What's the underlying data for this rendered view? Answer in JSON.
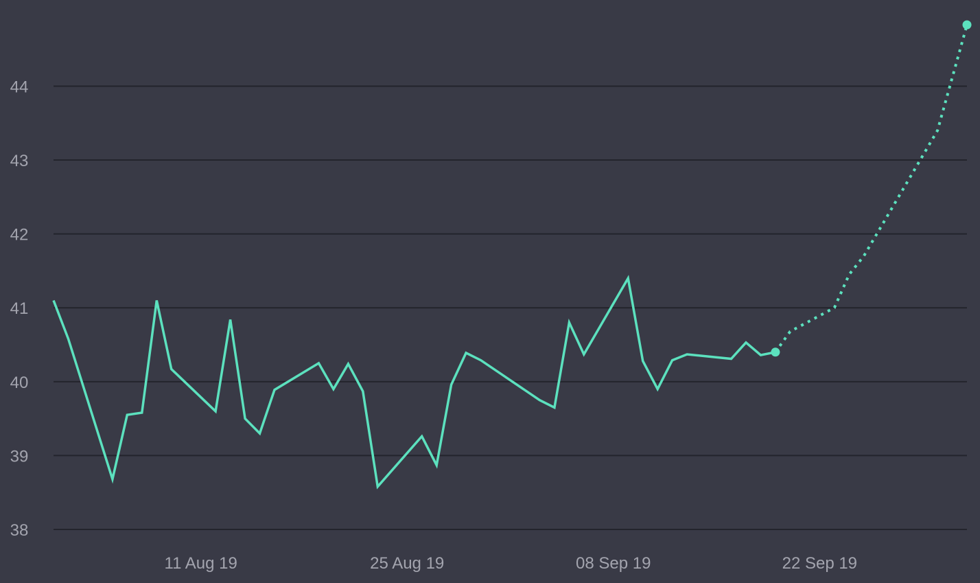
{
  "chart_data": {
    "type": "line",
    "title": "",
    "xlabel": "",
    "ylabel": "",
    "ylim": [
      38,
      44.85
    ],
    "xlim": [
      "2019-08-01",
      "2019-10-02"
    ],
    "grid": true,
    "legend": "none",
    "background_color": "#393a46",
    "series_color": "#5ce1be",
    "y_ticks": [
      {
        "value": 38,
        "label": "38"
      },
      {
        "value": 39,
        "label": "39"
      },
      {
        "value": 40,
        "label": "40"
      },
      {
        "value": 41,
        "label": "41"
      },
      {
        "value": 42,
        "label": "42"
      },
      {
        "value": 43,
        "label": "43"
      },
      {
        "value": 44,
        "label": "44"
      }
    ],
    "x_ticks": [
      {
        "value": "2019-08-11",
        "label": "11 Aug 19"
      },
      {
        "value": "2019-08-25",
        "label": "25 Aug 19"
      },
      {
        "value": "2019-09-08",
        "label": "08 Sep 19"
      },
      {
        "value": "2019-09-22",
        "label": "22 Sep 19"
      }
    ],
    "series": [
      {
        "style": "solid",
        "points": [
          {
            "x": "2019-08-01",
            "y": 41.1
          },
          {
            "x": "2019-08-02",
            "y": 40.58
          },
          {
            "x": "2019-08-05",
            "y": 38.68
          },
          {
            "x": "2019-08-06",
            "y": 39.55
          },
          {
            "x": "2019-08-07",
            "y": 39.58
          },
          {
            "x": "2019-08-08",
            "y": 41.1
          },
          {
            "x": "2019-08-09",
            "y": 40.17
          },
          {
            "x": "2019-08-12",
            "y": 39.6
          },
          {
            "x": "2019-08-13",
            "y": 40.84
          },
          {
            "x": "2019-08-14",
            "y": 39.5
          },
          {
            "x": "2019-08-15",
            "y": 39.3
          },
          {
            "x": "2019-08-16",
            "y": 39.89
          },
          {
            "x": "2019-08-19",
            "y": 40.25
          },
          {
            "x": "2019-08-20",
            "y": 39.9
          },
          {
            "x": "2019-08-21",
            "y": 40.24
          },
          {
            "x": "2019-08-22",
            "y": 39.87
          },
          {
            "x": "2019-08-23",
            "y": 38.58
          },
          {
            "x": "2019-08-26",
            "y": 39.26
          },
          {
            "x": "2019-08-27",
            "y": 38.87
          },
          {
            "x": "2019-08-28",
            "y": 39.96
          },
          {
            "x": "2019-08-29",
            "y": 40.39
          },
          {
            "x": "2019-08-30",
            "y": 40.29
          },
          {
            "x": "2019-09-03",
            "y": 39.75
          },
          {
            "x": "2019-09-04",
            "y": 39.65
          },
          {
            "x": "2019-09-05",
            "y": 40.8
          },
          {
            "x": "2019-09-06",
            "y": 40.37
          },
          {
            "x": "2019-09-09",
            "y": 41.4
          },
          {
            "x": "2019-09-10",
            "y": 40.28
          },
          {
            "x": "2019-09-11",
            "y": 39.9
          },
          {
            "x": "2019-09-12",
            "y": 40.29
          },
          {
            "x": "2019-09-13",
            "y": 40.37
          },
          {
            "x": "2019-09-16",
            "y": 40.31
          },
          {
            "x": "2019-09-17",
            "y": 40.53
          },
          {
            "x": "2019-09-18",
            "y": 40.36
          },
          {
            "x": "2019-09-19",
            "y": 40.4
          }
        ]
      },
      {
        "style": "dotted",
        "points": [
          {
            "x": "2019-09-19",
            "y": 40.4
          },
          {
            "x": "2019-09-20",
            "y": 40.68
          },
          {
            "x": "2019-09-23",
            "y": 41.0
          },
          {
            "x": "2019-09-24",
            "y": 41.45
          },
          {
            "x": "2019-09-25",
            "y": 41.7
          },
          {
            "x": "2019-09-30",
            "y": 43.4
          },
          {
            "x": "2019-10-02",
            "y": 44.83
          }
        ]
      }
    ]
  }
}
